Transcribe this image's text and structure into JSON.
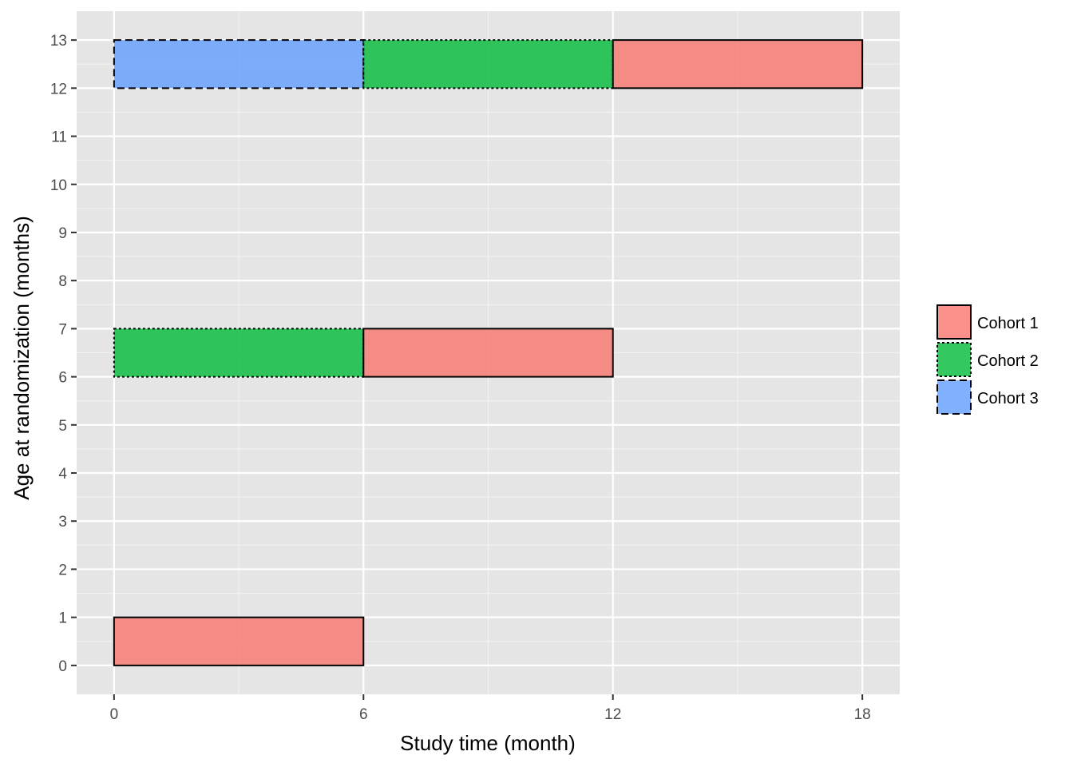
{
  "chart_data": {
    "type": "bar",
    "subtype": "floating-rectangles",
    "title": "",
    "xlabel": "Study time (month)",
    "ylabel": "Age at randomization (months)",
    "xlim": [
      -0.9,
      18.9
    ],
    "ylim": [
      -0.6,
      13.6
    ],
    "x_ticks": [
      0,
      6,
      12,
      18
    ],
    "y_ticks": [
      0,
      1,
      2,
      3,
      4,
      5,
      6,
      7,
      8,
      9,
      10,
      11,
      12,
      13
    ],
    "grid": true,
    "legend_position": "right",
    "series": [
      {
        "name": "Cohort 1",
        "color": "#F8766D",
        "linetype": "solid"
      },
      {
        "name": "Cohort 2",
        "color": "#00BA38",
        "linetype": "dotted"
      },
      {
        "name": "Cohort 3",
        "color": "#619CFF",
        "linetype": "dashed"
      }
    ],
    "rectangles": [
      {
        "series": "Cohort 1",
        "x": [
          0,
          6
        ],
        "y": [
          0,
          1
        ]
      },
      {
        "series": "Cohort 2",
        "x": [
          0,
          6
        ],
        "y": [
          6,
          7
        ]
      },
      {
        "series": "Cohort 1",
        "x": [
          6,
          12
        ],
        "y": [
          6,
          7
        ]
      },
      {
        "series": "Cohort 3",
        "x": [
          0,
          6
        ],
        "y": [
          12,
          13
        ]
      },
      {
        "series": "Cohort 2",
        "x": [
          6,
          12
        ],
        "y": [
          12,
          13
        ]
      },
      {
        "series": "Cohort 1",
        "x": [
          12,
          18
        ],
        "y": [
          12,
          13
        ]
      }
    ]
  }
}
